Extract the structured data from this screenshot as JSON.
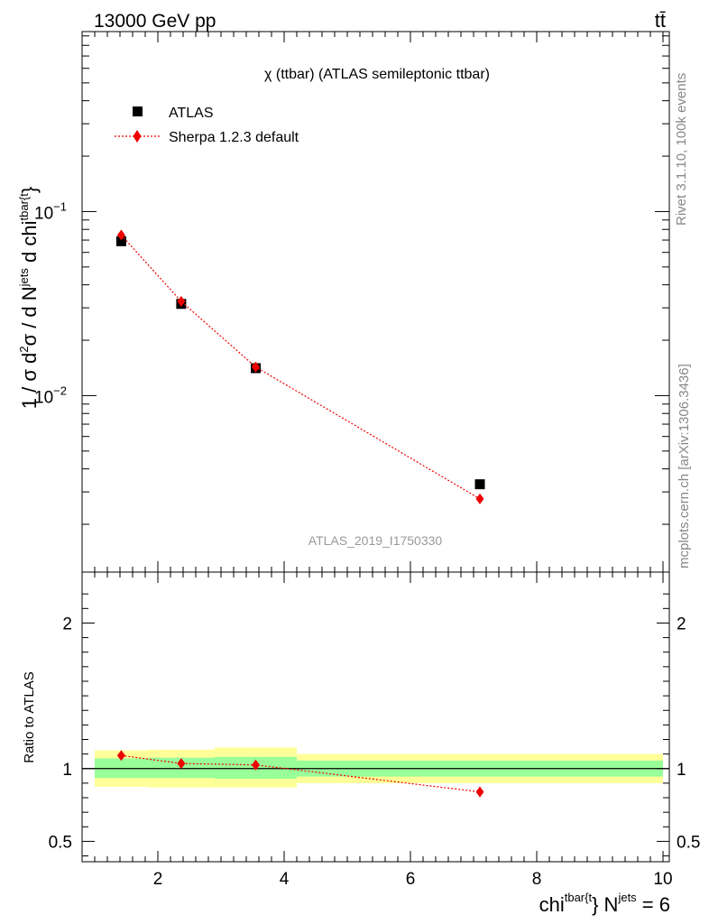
{
  "header": {
    "energy_label": "13000 GeV pp",
    "process_label": "tt̄"
  },
  "side_labels": {
    "rivet": "Rivet 3.1.10,  100k events",
    "mcplots": "mcplots.cern.ch [arXiv:1306.3436]"
  },
  "chart_data": [
    {
      "type": "scatter",
      "title": "χ (ttbar) (ATLAS semileptonic ttbar)",
      "watermark": "ATLAS_2019_I1750330",
      "ylabel": {
        "main": "1 / σ d",
        "sup1": "2",
        "mid": "σ / d N",
        "sup2": "jets",
        "mid2": " d chi",
        "sup3": "tbar{t",
        "tail": "}"
      },
      "yscale": "log",
      "ylim": [
        0.0011,
        0.95
      ],
      "xlim": [
        0.8,
        10.1
      ],
      "y_tick_labels": [
        {
          "value": 0.1,
          "base": "10",
          "exp": "−1"
        },
        {
          "value": 0.01,
          "base": "10",
          "exp": "−2"
        }
      ],
      "legend_position": "top-left",
      "series": [
        {
          "name": "ATLAS",
          "marker": "square",
          "color": "#000000",
          "x": [
            1.42,
            2.37,
            3.55,
            7.1
          ],
          "y": [
            0.069,
            0.0315,
            0.0141,
            0.0033
          ],
          "xerr": [
            [
              1.0,
              1.85
            ],
            [
              1.85,
              2.9
            ],
            [
              2.9,
              4.2
            ],
            [
              4.2,
              10.0
            ]
          ]
        },
        {
          "name": "Sherpa 1.2.3 default",
          "marker": "diamond",
          "color": "#ee0000",
          "linestyle": "dotted",
          "x": [
            1.42,
            2.37,
            3.55,
            7.1
          ],
          "y": [
            0.0745,
            0.0325,
            0.0143,
            0.00275
          ]
        }
      ]
    },
    {
      "type": "scatter",
      "ylabel": "Ratio to ATLAS",
      "xlabel": {
        "pre": "chi",
        "sup1": "tbar{t",
        "mid": "} N",
        "sup2": "jets",
        "tail": " = 6"
      },
      "xlim": [
        0.8,
        10.1
      ],
      "ylim": [
        0.36,
        2.35
      ],
      "x_ticks": [
        2,
        4,
        6,
        8,
        10
      ],
      "y_ticks": [
        0.5,
        1,
        2
      ],
      "reference_line": 1,
      "bands": [
        {
          "x": [
            1.0,
            1.85
          ],
          "inner": [
            0.935,
            1.07
          ],
          "outer": [
            0.875,
            1.125
          ]
        },
        {
          "x": [
            1.85,
            2.9
          ],
          "inner": [
            0.935,
            1.075
          ],
          "outer": [
            0.87,
            1.13
          ]
        },
        {
          "x": [
            2.9,
            4.2
          ],
          "inner": [
            0.93,
            1.08
          ],
          "outer": [
            0.87,
            1.145
          ]
        },
        {
          "x": [
            4.2,
            10.0
          ],
          "inner": [
            0.945,
            1.055
          ],
          "outer": [
            0.9,
            1.1
          ]
        }
      ],
      "band_colors": {
        "inner": "#99ff99",
        "outer": "#ffff99"
      },
      "series": [
        {
          "name": "Sherpa 1.2.3 default",
          "marker": "diamond",
          "color": "#ee0000",
          "x": [
            1.42,
            2.37,
            3.55,
            7.1
          ],
          "y": [
            1.09,
            1.035,
            1.025,
            0.84
          ],
          "yerr": [
            0.015,
            0.025,
            0.03,
            0.035
          ]
        }
      ]
    }
  ]
}
